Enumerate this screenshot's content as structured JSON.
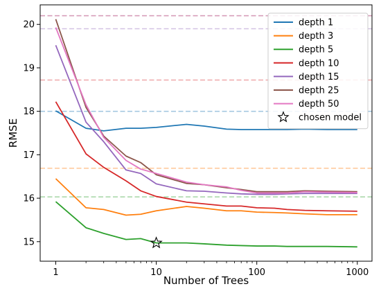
{
  "chart_data": {
    "type": "line",
    "xlabel": "Number of Trees",
    "ylabel": "RMSE",
    "xscale": "log",
    "xlim": [
      0.7,
      1400
    ],
    "ylim": [
      14.55,
      20.45
    ],
    "xticks": [
      1,
      10,
      100,
      1000
    ],
    "xtick_labels": [
      "1",
      "10",
      "100",
      "1000"
    ],
    "yticks": [
      15,
      16,
      17,
      18,
      19,
      20
    ],
    "ytick_labels": [
      "15",
      "16",
      "17",
      "18",
      "19",
      "20"
    ],
    "legend_position": "top-right",
    "grid": false,
    "x": [
      1,
      2,
      3,
      5,
      7,
      10,
      20,
      30,
      50,
      70,
      100,
      150,
      200,
      300,
      500,
      1000
    ],
    "series": [
      {
        "name": "depth 1",
        "color": "#1f77b4",
        "baseline": 18.0,
        "values": [
          18.01,
          17.61,
          17.55,
          17.61,
          17.61,
          17.63,
          17.7,
          17.66,
          17.59,
          17.58,
          17.58,
          17.58,
          17.58,
          17.59,
          17.58,
          17.58
        ]
      },
      {
        "name": "depth 3",
        "color": "#ff7f0e",
        "baseline": 16.69,
        "values": [
          16.45,
          15.78,
          15.74,
          15.61,
          15.63,
          15.71,
          15.81,
          15.77,
          15.71,
          15.71,
          15.68,
          15.67,
          15.66,
          15.64,
          15.62,
          15.62
        ]
      },
      {
        "name": "depth 5",
        "color": "#2ca02c",
        "baseline": 16.03,
        "values": [
          15.92,
          15.32,
          15.19,
          15.05,
          15.07,
          14.97,
          14.97,
          14.95,
          14.92,
          14.91,
          14.9,
          14.9,
          14.89,
          14.89,
          14.89,
          14.88
        ]
      },
      {
        "name": "depth 10",
        "color": "#d62728",
        "baseline": 18.72,
        "values": [
          18.22,
          17.02,
          16.71,
          16.4,
          16.17,
          16.04,
          15.91,
          15.87,
          15.82,
          15.82,
          15.78,
          15.77,
          15.74,
          15.72,
          15.71,
          15.7
        ]
      },
      {
        "name": "depth 15",
        "color": "#9467bd",
        "baseline": 19.9,
        "values": [
          19.52,
          17.75,
          17.3,
          16.65,
          16.57,
          16.33,
          16.17,
          16.16,
          16.12,
          16.1,
          16.09,
          16.09,
          16.1,
          16.11,
          16.11,
          16.11
        ]
      },
      {
        "name": "depth 25",
        "color": "#8c564b",
        "baseline": 20.2,
        "values": [
          20.12,
          18.09,
          17.43,
          16.97,
          16.82,
          16.54,
          16.34,
          16.31,
          16.24,
          16.2,
          16.15,
          16.15,
          16.15,
          16.17,
          16.16,
          16.15
        ]
      },
      {
        "name": "depth 50",
        "color": "#e377c2",
        "baseline": 20.2,
        "values": [
          19.93,
          18.15,
          17.4,
          16.87,
          16.67,
          16.57,
          16.37,
          16.31,
          16.26,
          16.18,
          16.12,
          16.12,
          16.12,
          16.15,
          16.14,
          16.13
        ]
      }
    ],
    "chosen_model": {
      "name": "chosen model",
      "x": 10,
      "y": 14.97
    }
  }
}
